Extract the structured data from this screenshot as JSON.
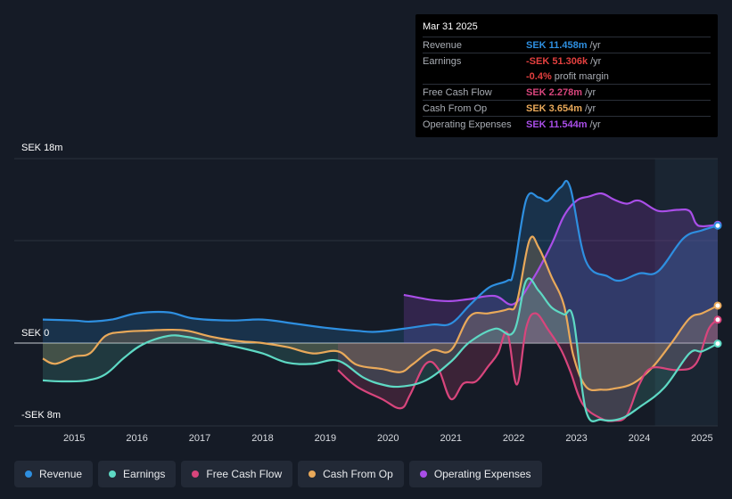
{
  "tooltip": {
    "date": "Mar 31 2025",
    "rows": [
      {
        "label": "Revenue",
        "value": "SEK 11.458m",
        "unit": "/yr",
        "color": "#2e8fe0"
      },
      {
        "label": "Earnings",
        "value": "-SEK 51.306k",
        "unit": "/yr",
        "color": "#e3403f"
      },
      {
        "label": "",
        "value": "-0.4%",
        "unit": "profit margin",
        "color": "#e3403f"
      },
      {
        "label": "Free Cash Flow",
        "value": "SEK 2.278m",
        "unit": "/yr",
        "color": "#d8457c"
      },
      {
        "label": "Cash From Op",
        "value": "SEK 3.654m",
        "unit": "/yr",
        "color": "#e9a95a"
      },
      {
        "label": "Operating Expenses",
        "value": "SEK 11.544m",
        "unit": "/yr",
        "color": "#a94ee8"
      }
    ]
  },
  "legend": [
    {
      "label": "Revenue",
      "color": "#2e8fe0"
    },
    {
      "label": "Earnings",
      "color": "#5ed9c4"
    },
    {
      "label": "Free Cash Flow",
      "color": "#d8457c"
    },
    {
      "label": "Cash From Op",
      "color": "#e9a95a"
    },
    {
      "label": "Operating Expenses",
      "color": "#a94ee8"
    }
  ],
  "chart_data": {
    "type": "area",
    "title": "",
    "currency": "SEK",
    "y_labels": [
      "SEK 18m",
      "SEK 0",
      "-SEK 8m"
    ],
    "ylim": [
      -8,
      18
    ],
    "x_ticks": [
      "2015",
      "2016",
      "2017",
      "2018",
      "2019",
      "2020",
      "2021",
      "2022",
      "2023",
      "2024",
      "2025"
    ],
    "xlim": [
      2014.5,
      2025.25
    ],
    "series": [
      {
        "name": "Revenue",
        "color": "#2e8fe0",
        "x": [
          2014.5,
          2015.0,
          2015.25,
          2015.6,
          2016.0,
          2016.5,
          2016.9,
          2017.5,
          2018.0,
          2018.5,
          2019.0,
          2019.5,
          2019.8,
          2020.25,
          2020.7,
          2021.0,
          2021.3,
          2021.6,
          2021.9,
          2022.0,
          2022.2,
          2022.4,
          2022.55,
          2022.75,
          2022.9,
          2023.15,
          2023.5,
          2023.7,
          2024.0,
          2024.3,
          2024.7,
          2025.0,
          2025.25
        ],
        "values": [
          2.3,
          2.2,
          2.1,
          2.3,
          2.9,
          3.0,
          2.4,
          2.2,
          2.3,
          1.9,
          1.5,
          1.2,
          1.1,
          1.4,
          1.8,
          1.9,
          3.7,
          5.4,
          6.1,
          7.0,
          14.0,
          14.2,
          13.9,
          15.2,
          15.2,
          8.0,
          6.5,
          6.1,
          6.8,
          7.0,
          10.2,
          11.0,
          11.458
        ]
      },
      {
        "name": "Earnings",
        "color": "#5ed9c4",
        "x": [
          2014.5,
          2014.8,
          2015.2,
          2015.5,
          2015.8,
          2016.1,
          2016.5,
          2016.8,
          2017.2,
          2017.6,
          2018.0,
          2018.4,
          2018.8,
          2019.2,
          2019.6,
          2019.9,
          2020.2,
          2020.6,
          2021.0,
          2021.3,
          2021.7,
          2022.0,
          2022.2,
          2022.4,
          2022.6,
          2022.8,
          2022.95,
          2023.15,
          2023.4,
          2023.7,
          2024.0,
          2024.4,
          2024.8,
          2025.0,
          2025.25
        ],
        "values": [
          -3.6,
          -3.7,
          -3.6,
          -3.0,
          -1.4,
          -0.1,
          0.7,
          0.6,
          0.1,
          -0.4,
          -1.0,
          -1.9,
          -2.0,
          -1.7,
          -3.3,
          -4.0,
          -4.2,
          -3.6,
          -1.8,
          0.1,
          1.4,
          1.1,
          6.1,
          5.1,
          3.5,
          2.8,
          2.4,
          -6.5,
          -7.4,
          -7.3,
          -6.2,
          -4.3,
          -1.0,
          -0.8,
          -0.051
        ]
      },
      {
        "name": "Free Cash Flow",
        "color": "#d8457c",
        "x": [
          2019.2,
          2019.5,
          2019.9,
          2020.2,
          2020.35,
          2020.6,
          2020.8,
          2021.0,
          2021.2,
          2021.4,
          2021.6,
          2021.75,
          2021.9,
          2022.05,
          2022.2,
          2022.35,
          2022.55,
          2022.75,
          2022.9,
          2023.1,
          2023.4,
          2023.6,
          2023.8,
          2024.0,
          2024.2,
          2024.6,
          2024.9,
          2025.1,
          2025.25
        ],
        "values": [
          -2.6,
          -4.2,
          -5.4,
          -6.3,
          -5.0,
          -2.0,
          -2.5,
          -5.4,
          -3.9,
          -3.7,
          -2.2,
          -1.0,
          1.0,
          -4.0,
          1.5,
          2.9,
          1.3,
          -0.6,
          -2.7,
          -5.9,
          -7.3,
          -7.5,
          -7.0,
          -4.0,
          -2.4,
          -2.6,
          -2.0,
          1.3,
          2.278
        ]
      },
      {
        "name": "Cash From Op",
        "color": "#e9a95a",
        "x": [
          2014.5,
          2014.7,
          2015.0,
          2015.25,
          2015.5,
          2015.8,
          2016.1,
          2016.5,
          2016.8,
          2017.2,
          2017.6,
          2018.0,
          2018.4,
          2018.8,
          2019.2,
          2019.5,
          2019.9,
          2020.2,
          2020.4,
          2020.7,
          2021.0,
          2021.3,
          2021.6,
          2021.9,
          2022.05,
          2022.25,
          2022.4,
          2022.6,
          2022.8,
          2022.95,
          2023.15,
          2023.4,
          2023.6,
          2023.9,
          2024.2,
          2024.5,
          2024.8,
          2025.0,
          2025.25
        ],
        "values": [
          -1.5,
          -2.0,
          -1.3,
          -1.0,
          0.7,
          1.1,
          1.2,
          1.3,
          1.2,
          0.6,
          0.2,
          0.0,
          -0.4,
          -1.0,
          -0.8,
          -2.1,
          -2.5,
          -2.8,
          -2.0,
          -0.7,
          -0.7,
          2.6,
          2.9,
          3.3,
          4.0,
          10.0,
          9.3,
          6.5,
          3.7,
          -1.2,
          -4.2,
          -4.5,
          -4.4,
          -3.9,
          -2.4,
          -0.1,
          2.4,
          2.9,
          3.654
        ]
      },
      {
        "name": "Operating Expenses",
        "color": "#a94ee8",
        "x": [
          2020.25,
          2020.7,
          2021.0,
          2021.3,
          2021.7,
          2022.0,
          2022.3,
          2022.6,
          2022.8,
          2023.0,
          2023.2,
          2023.4,
          2023.6,
          2023.8,
          2024.0,
          2024.3,
          2024.6,
          2024.8,
          2024.9,
          2025.0,
          2025.25
        ],
        "values": [
          4.7,
          4.2,
          4.1,
          4.3,
          4.6,
          3.8,
          6.2,
          9.6,
          12.4,
          13.9,
          14.3,
          14.6,
          14.0,
          13.6,
          13.9,
          12.9,
          13.0,
          12.9,
          11.7,
          11.4,
          11.544
        ]
      }
    ]
  }
}
